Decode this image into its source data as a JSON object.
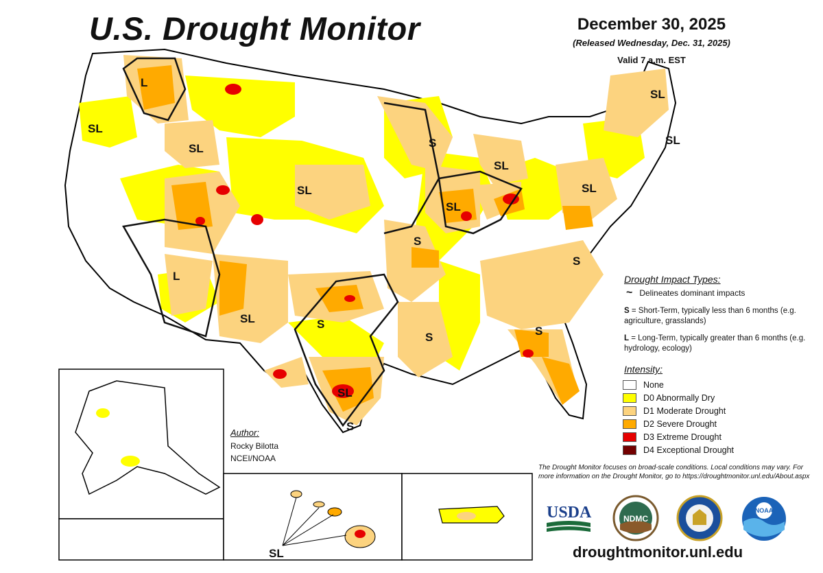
{
  "header": {
    "title": "U.S. Drought Monitor",
    "date": "December 30, 2025",
    "released": "(Released Wednesday, Dec. 31, 2025)",
    "valid": "Valid 7 a.m. EST"
  },
  "impact_types": {
    "title": "Drought Impact Types:",
    "line_label": "Delineates dominant impacts",
    "short_key": "S",
    "short_text": "= Short-Term, typically less than 6 months (e.g. agriculture, grasslands)",
    "long_key": "L",
    "long_text": "= Long-Term, typically greater than 6 months (e.g. hydrology, ecology)"
  },
  "intensity": {
    "title": "Intensity:",
    "items": [
      {
        "label": "None",
        "color": "#ffffff"
      },
      {
        "label": "D0 Abnormally Dry",
        "color": "#ffff00"
      },
      {
        "label": "D1 Moderate Drought",
        "color": "#fcd37f"
      },
      {
        "label": "D2 Severe Drought",
        "color": "#ffaa00"
      },
      {
        "label": "D3 Extreme Drought",
        "color": "#e60000"
      },
      {
        "label": "D4 Exceptional Drought",
        "color": "#730000"
      }
    ]
  },
  "author": {
    "title": "Author:",
    "name": "Rocky Bilotta",
    "org": "NCEI/NOAA"
  },
  "note": "The Drought Monitor focuses on broad-scale conditions. Local conditions may vary. For more information on the Drought Monitor, go to https://droughtmonitor.unl.edu/About.aspx",
  "url": "droughtmonitor.unl.edu",
  "logos": {
    "usda": "USDA",
    "ndmc": "NDMC",
    "noaa": "NOAA"
  },
  "map_labels": {
    "wa": "SL",
    "id_n": "L",
    "id_s": "SL",
    "ne": "SL",
    "wi": "S",
    "mi": "SL",
    "me": "SL",
    "ma": "SL",
    "pa": "SL",
    "il": "SL",
    "nv": "L",
    "mo": "S",
    "va": "S",
    "nm": "SL",
    "ok": "S",
    "la": "S",
    "ga": "S",
    "tx": "SL",
    "tx_s": "S",
    "hi": "SL"
  }
}
